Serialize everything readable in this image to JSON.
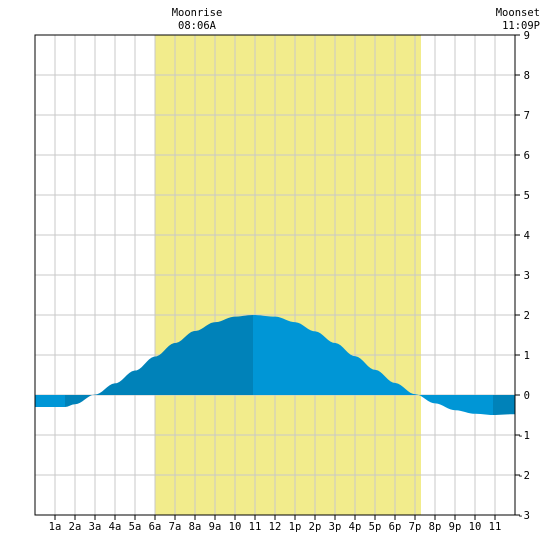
{
  "chart_data": {
    "type": "area",
    "title": "",
    "xlabel": "",
    "ylabel": "",
    "x_range_hours": [
      0,
      24
    ],
    "ylim": [
      -3,
      9
    ],
    "grid": true,
    "x_ticks": [
      {
        "hour": 1,
        "label": "1a"
      },
      {
        "hour": 2,
        "label": "2a"
      },
      {
        "hour": 3,
        "label": "3a"
      },
      {
        "hour": 4,
        "label": "4a"
      },
      {
        "hour": 5,
        "label": "5a"
      },
      {
        "hour": 6,
        "label": "6a"
      },
      {
        "hour": 7,
        "label": "7a"
      },
      {
        "hour": 8,
        "label": "8a"
      },
      {
        "hour": 9,
        "label": "9a"
      },
      {
        "hour": 10,
        "label": "10"
      },
      {
        "hour": 11,
        "label": "11"
      },
      {
        "hour": 12,
        "label": "12"
      },
      {
        "hour": 13,
        "label": "1p"
      },
      {
        "hour": 14,
        "label": "2p"
      },
      {
        "hour": 15,
        "label": "3p"
      },
      {
        "hour": 16,
        "label": "4p"
      },
      {
        "hour": 17,
        "label": "5p"
      },
      {
        "hour": 18,
        "label": "6p"
      },
      {
        "hour": 19,
        "label": "7p"
      },
      {
        "hour": 20,
        "label": "8p"
      },
      {
        "hour": 21,
        "label": "9p"
      },
      {
        "hour": 22,
        "label": "10"
      },
      {
        "hour": 23,
        "label": "11"
      }
    ],
    "y_ticks": [
      -3,
      -2,
      -1,
      0,
      1,
      2,
      3,
      4,
      5,
      6,
      7,
      8,
      9
    ],
    "daylight_band_hours": [
      6.0,
      19.3
    ],
    "moonrise": {
      "label": "Moonrise",
      "time": "08:06A",
      "hour": 8.1
    },
    "moonset": {
      "label": "Moonset",
      "time": "11:09P",
      "hour": 23.15
    },
    "extrema": [
      {
        "type": "low",
        "hour": 1.5,
        "value": -0.3
      },
      {
        "type": "high",
        "hour": 10.9,
        "value": 2.0
      },
      {
        "type": "low",
        "hour": 22.9,
        "value": -0.5
      }
    ],
    "series": [
      {
        "values": [
          [
            0,
            -0.3
          ],
          [
            1.5,
            -0.3
          ],
          [
            2,
            -0.23
          ],
          [
            3,
            0.01
          ],
          [
            4,
            0.29
          ],
          [
            5,
            0.61
          ],
          [
            6,
            0.96
          ],
          [
            7,
            1.3
          ],
          [
            8,
            1.6
          ],
          [
            9,
            1.82
          ],
          [
            10,
            1.96
          ],
          [
            10.9,
            2.0
          ],
          [
            12,
            1.96
          ],
          [
            13,
            1.82
          ],
          [
            14,
            1.59
          ],
          [
            15,
            1.3
          ],
          [
            16,
            0.97
          ],
          [
            17,
            0.63
          ],
          [
            18,
            0.3
          ],
          [
            19,
            0.02
          ],
          [
            20,
            -0.21
          ],
          [
            21,
            -0.38
          ],
          [
            22,
            -0.47
          ],
          [
            22.9,
            -0.5
          ],
          [
            24,
            -0.48
          ]
        ]
      }
    ],
    "colors": {
      "daylight": "#f2ec8c",
      "grid": "#c8c8c8",
      "axis": "#000000",
      "tide_rising": "#0082b9",
      "tide_falling": "#0096d6"
    }
  }
}
